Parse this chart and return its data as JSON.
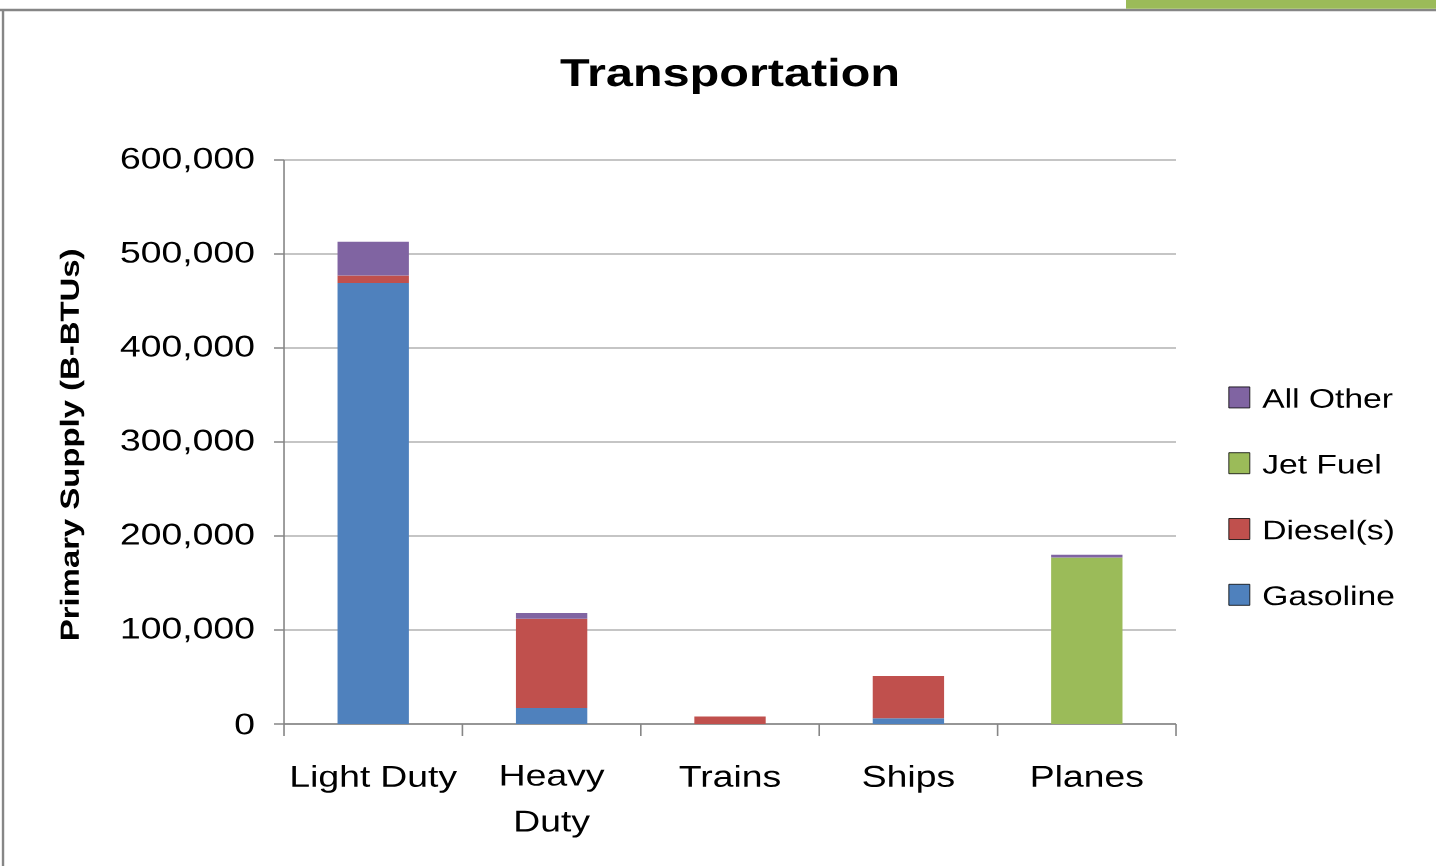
{
  "chart_data": {
    "type": "bar",
    "title": "Transportation",
    "ylabel": "Primary Supply (B-BTUs)",
    "categories": [
      "Light Duty",
      "Heavy Duty",
      "Trains",
      "Ships",
      "Planes"
    ],
    "stacked": true,
    "series": [
      {
        "name": "Gasoline",
        "color": "#4f81bd",
        "values": [
          469000,
          17000,
          null,
          6000,
          null
        ]
      },
      {
        "name": "Diesel(s)",
        "color": "#c0504d",
        "values": [
          8000,
          95000,
          8000,
          45000,
          null
        ]
      },
      {
        "name": "Jet Fuel",
        "color": "#9bbb59",
        "values": [
          null,
          null,
          null,
          null,
          177000
        ]
      },
      {
        "name": "All Other",
        "color": "#8064a2",
        "values": [
          36000,
          6000,
          null,
          null,
          3000
        ]
      }
    ],
    "ylim": [
      0,
      600000
    ],
    "yticks": [
      0,
      {
        "value": 100000,
        "label": "100,000"
      },
      {
        "value": 200000,
        "label": "200,000"
      },
      {
        "value": 300000,
        "label": "300,000"
      },
      {
        "value": 400000,
        "label": "400,000"
      },
      {
        "value": 500000,
        "label": "500,000"
      },
      {
        "value": 600000,
        "label": "600,000"
      }
    ],
    "grid": "y",
    "legend": "right"
  }
}
